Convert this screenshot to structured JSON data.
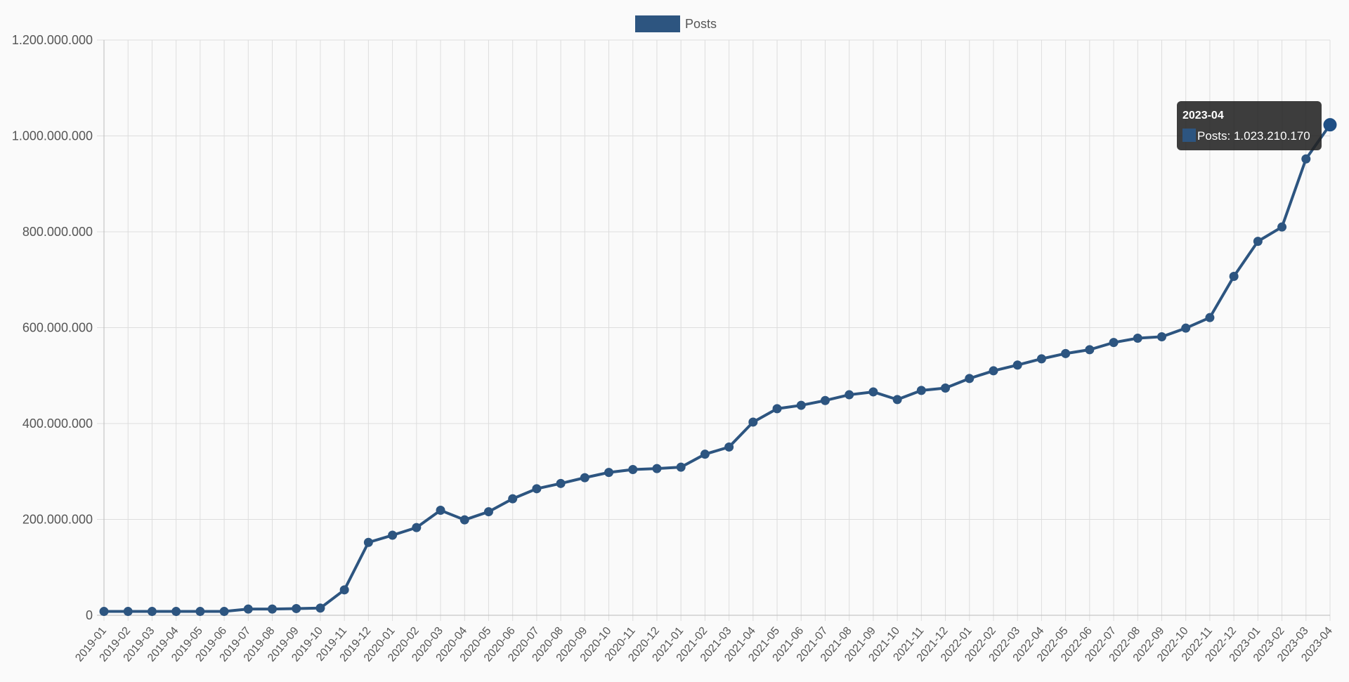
{
  "chart_data": {
    "type": "line",
    "categories": [
      "2019-01",
      "2019-02",
      "2019-03",
      "2019-04",
      "2019-05",
      "2019-06",
      "2019-07",
      "2019-08",
      "2019-09",
      "2019-10",
      "2019-11",
      "2019-12",
      "2020-01",
      "2020-02",
      "2020-03",
      "2020-04",
      "2020-05",
      "2020-06",
      "2020-07",
      "2020-08",
      "2020-09",
      "2020-10",
      "2020-11",
      "2020-12",
      "2021-01",
      "2021-02",
      "2021-03",
      "2021-04",
      "2021-05",
      "2021-06",
      "2021-07",
      "2021-08",
      "2021-09",
      "2021-10",
      "2021-11",
      "2021-12",
      "2022-01",
      "2022-02",
      "2022-03",
      "2022-04",
      "2022-05",
      "2022-06",
      "2022-07",
      "2022-08",
      "2022-09",
      "2022-10",
      "2022-11",
      "2022-12",
      "2023-01",
      "2023-02",
      "2023-03",
      "2023-04"
    ],
    "series": [
      {
        "name": "Posts",
        "color": "#2d5580",
        "values": [
          8000000,
          8000000,
          8000000,
          8000000,
          8000000,
          8000000,
          13000000,
          13000000,
          14000000,
          15000000,
          53000000,
          152000000,
          167000000,
          183000000,
          219000000,
          199000000,
          216000000,
          243000000,
          264000000,
          275000000,
          287000000,
          298000000,
          304000000,
          306000000,
          309000000,
          336000000,
          351000000,
          403000000,
          431000000,
          438000000,
          448000000,
          460000000,
          466000000,
          450000000,
          469000000,
          474000000,
          494000000,
          510000000,
          522000000,
          535000000,
          546000000,
          554000000,
          569000000,
          578000000,
          581000000,
          599000000,
          621000000,
          707000000,
          780000000,
          810000000,
          952000000,
          1023210170
        ]
      }
    ],
    "y_ticks": [
      "0",
      "200.000.000",
      "400.000.000",
      "600.000.000",
      "800.000.000",
      "1.000.000.000",
      "1.200.000.000"
    ],
    "ylim": [
      0,
      1200000000
    ],
    "grid": true,
    "legend": {
      "position": "top-center",
      "label": "Posts"
    },
    "tooltip": {
      "category": "2023-04",
      "title": "2023-04",
      "body": "Posts: 1.023.210.170"
    }
  },
  "colors": {
    "line": "#2d5580",
    "grid": "#dddddd",
    "axis": "#bbbbbb",
    "tick_text": "#555555",
    "tooltip_bg": "#222222"
  }
}
